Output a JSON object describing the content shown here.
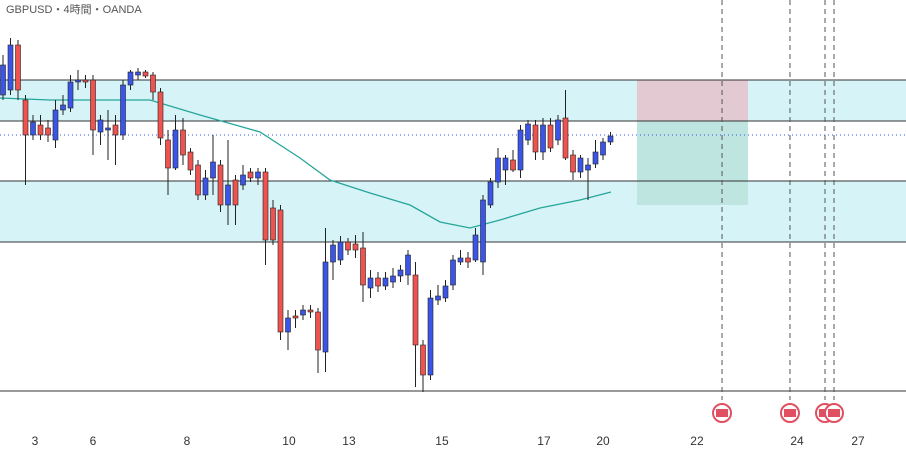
{
  "chart_data": {
    "type": "candlestick",
    "title": "GBPUSD・4時間・OANDA",
    "xlim": [
      -0.4,
      120.4
    ],
    "ylim": [
      0,
      453
    ],
    "xticks": [
      {
        "value": 4.27,
        "label": "3"
      },
      {
        "value": 12,
        "label": "6"
      },
      {
        "value": 24.53,
        "label": "8"
      },
      {
        "value": 38.13,
        "label": "10"
      },
      {
        "value": 46.13,
        "label": "13"
      },
      {
        "value": 58.53,
        "label": "15"
      },
      {
        "value": 72.13,
        "label": "17"
      },
      {
        "value": 80,
        "label": "20"
      },
      {
        "value": 92.53,
        "label": "22"
      },
      {
        "value": 105.87,
        "label": "24"
      },
      {
        "value": 114,
        "label": "27"
      }
    ],
    "up_color": "#3a55e8",
    "down_color": "#ef5350",
    "candles": {
      "x": [
        0,
        1,
        2,
        3,
        4,
        5,
        6,
        7,
        8,
        9,
        10,
        11,
        12,
        13,
        14,
        15,
        16,
        17,
        18,
        19,
        20,
        21,
        22,
        23,
        24,
        25,
        26,
        27,
        28,
        29,
        30,
        31,
        32,
        33,
        34,
        35,
        36,
        37,
        38,
        39,
        40,
        41,
        42,
        43,
        44,
        45,
        46,
        47,
        48,
        49,
        50,
        51,
        52,
        53,
        54,
        55,
        56,
        57,
        58,
        59,
        60,
        61,
        62,
        63,
        64,
        65,
        66,
        67,
        68,
        69,
        70,
        71,
        72,
        73,
        74,
        75,
        76,
        77,
        78,
        79,
        80,
        81
      ],
      "open": [
        358,
        363,
        408,
        353,
        318,
        328,
        325,
        313,
        343,
        345,
        371,
        373,
        373,
        321,
        323,
        328,
        318,
        368,
        378,
        381,
        378,
        361,
        313,
        285,
        323,
        301,
        288,
        258,
        275,
        288,
        248,
        273,
        268,
        281,
        275,
        281,
        245,
        243,
        121,
        137,
        138,
        143,
        141,
        101,
        191,
        193,
        211,
        209,
        205,
        165,
        175,
        167,
        171,
        177,
        178,
        178,
        108,
        78,
        153,
        155,
        168,
        191,
        195,
        193,
        191,
        248,
        271,
        283,
        293,
        283,
        313,
        328,
        301,
        328,
        313,
        335,
        298,
        281,
        283,
        289,
        298,
        311
      ],
      "high": [
        398,
        415,
        413,
        358,
        338,
        338,
        333,
        353,
        358,
        378,
        383,
        378,
        378,
        338,
        343,
        338,
        373,
        383,
        385,
        383,
        381,
        365,
        323,
        338,
        335,
        305,
        293,
        283,
        318,
        293,
        313,
        278,
        288,
        285,
        285,
        285,
        253,
        248,
        143,
        143,
        148,
        148,
        145,
        225,
        213,
        217,
        215,
        218,
        221,
        183,
        181,
        181,
        185,
        188,
        203,
        191,
        113,
        163,
        168,
        173,
        198,
        203,
        201,
        225,
        258,
        275,
        305,
        298,
        303,
        328,
        333,
        333,
        335,
        335,
        338,
        363,
        303,
        298,
        295,
        313,
        315,
        321
      ],
      "low": [
        353,
        358,
        353,
        268,
        313,
        313,
        311,
        305,
        338,
        341,
        363,
        365,
        298,
        308,
        293,
        288,
        313,
        363,
        373,
        375,
        353,
        308,
        258,
        283,
        288,
        278,
        253,
        253,
        258,
        241,
        228,
        228,
        263,
        271,
        268,
        188,
        208,
        113,
        103,
        125,
        133,
        135,
        80,
        81,
        173,
        188,
        198,
        195,
        151,
        155,
        161,
        163,
        165,
        171,
        168,
        66,
        61,
        73,
        148,
        151,
        163,
        188,
        185,
        191,
        178,
        245,
        265,
        268,
        281,
        275,
        308,
        293,
        293,
        301,
        308,
        293,
        273,
        275,
        253,
        285,
        293,
        308
      ],
      "close": [
        388,
        408,
        363,
        318,
        331,
        318,
        318,
        343,
        348,
        371,
        373,
        371,
        323,
        333,
        325,
        318,
        368,
        381,
        381,
        377,
        361,
        315,
        285,
        323,
        298,
        283,
        258,
        275,
        291,
        248,
        268,
        248,
        278,
        275,
        281,
        213,
        213,
        121,
        135,
        135,
        143,
        141,
        103,
        191,
        208,
        211,
        203,
        203,
        168,
        175,
        167,
        175,
        177,
        183,
        198,
        108,
        78,
        155,
        157,
        167,
        193,
        195,
        191,
        218,
        253,
        271,
        295,
        295,
        283,
        323,
        329,
        301,
        328,
        305,
        333,
        295,
        281,
        295,
        288,
        301,
        311,
        317
      ]
    },
    "ma": {
      "color": "#26a69a",
      "x": [
        -0.4,
        6.27,
        12.93,
        19.6,
        26.27,
        34.27,
        39.6,
        43.6,
        48.93,
        54.27,
        58.27,
        62.27,
        66.27,
        71.6,
        76.93,
        81.07
      ],
      "values": [
        355,
        353,
        353,
        353,
        338,
        321,
        295,
        273,
        260,
        248,
        231,
        225,
        233,
        245,
        253,
        261
      ]
    },
    "zones": [
      {
        "top": 373,
        "bottom": 332
      },
      {
        "top": 272,
        "bottom": 211
      }
    ],
    "zone_color": "#d6f3f7",
    "levels": [
      373,
      332,
      272,
      211,
      62
    ],
    "dotted_level": 318,
    "position": {
      "x_start": 84.53,
      "x_end": 99.33,
      "stop": 373,
      "entry": 332,
      "target": 248,
      "stop_color": "#e3c9d2",
      "target_color": "#bfe5e1"
    },
    "events": [
      95.87,
      104.93,
      109.6,
      110.8
    ]
  }
}
